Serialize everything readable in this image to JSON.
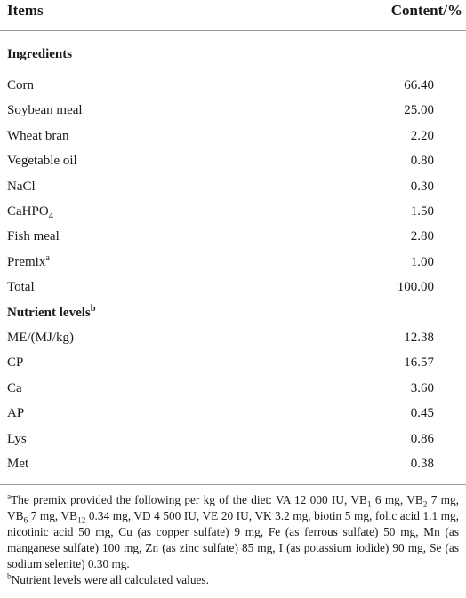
{
  "header": {
    "items": "Items",
    "content": "Content/%"
  },
  "sections": [
    {
      "title": [
        {
          "text": "Ingredients"
        }
      ],
      "rows": [
        {
          "item": [
            {
              "text": "Corn"
            }
          ],
          "value": "66.40"
        },
        {
          "item": [
            {
              "text": "Soybean meal"
            }
          ],
          "value": "25.00"
        },
        {
          "item": [
            {
              "text": "Wheat bran"
            }
          ],
          "value": "2.20"
        },
        {
          "item": [
            {
              "text": "Vegetable oil"
            }
          ],
          "value": "0.80"
        },
        {
          "item": [
            {
              "text": "NaCl"
            }
          ],
          "value": "0.30"
        },
        {
          "item": [
            {
              "text": "CaHPO"
            },
            {
              "sub": "4"
            }
          ],
          "value": "1.50"
        },
        {
          "item": [
            {
              "text": "Fish meal"
            }
          ],
          "value": "2.80"
        },
        {
          "item": [
            {
              "text": "Premix"
            },
            {
              "sup": "a"
            }
          ],
          "value": "1.00"
        },
        {
          "item": [
            {
              "text": "Total"
            }
          ],
          "value": "100.00"
        }
      ]
    },
    {
      "title": [
        {
          "text": "Nutrient levels"
        },
        {
          "sup": "b"
        }
      ],
      "rows": [
        {
          "item": [
            {
              "text": "ME/(MJ/kg)"
            }
          ],
          "value": "12.38"
        },
        {
          "item": [
            {
              "text": "CP"
            }
          ],
          "value": "16.57"
        },
        {
          "item": [
            {
              "text": "Ca"
            }
          ],
          "value": "3.60"
        },
        {
          "item": [
            {
              "text": "AP"
            }
          ],
          "value": "0.45"
        },
        {
          "item": [
            {
              "text": "Lys"
            }
          ],
          "value": "0.86"
        },
        {
          "item": [
            {
              "text": "Met"
            }
          ],
          "value": "0.38"
        }
      ]
    }
  ],
  "footnotes": [
    [
      {
        "sup": "a"
      },
      {
        "text": "The premix provided the following per kg of the diet: VA 12 000 IU, VB"
      },
      {
        "sub": "1"
      },
      {
        "text": " 6 mg, VB"
      },
      {
        "sub": "2"
      },
      {
        "text": " 7 mg, VB"
      },
      {
        "sub": "6"
      },
      {
        "text": " 7 mg, VB"
      },
      {
        "sub": "12"
      },
      {
        "text": " 0.34 mg, VD 4 500 IU, VE 20 IU, VK 3.2 mg, biotin 5 mg, folic acid 1.1 mg, nicotinic acid 50 mg, Cu (as copper sulfate) 9 mg, Fe (as ferrous sulfate) 50 mg, Mn (as manganese sulfate) 100 mg, Zn (as zinc sulfate) 85 mg, I (as potassium iodide) 90 mg, Se (as sodium selenite) 0.30 mg."
      }
    ],
    [
      {
        "sup": "b"
      },
      {
        "text": "Nutrient levels were all calculated values."
      }
    ]
  ]
}
